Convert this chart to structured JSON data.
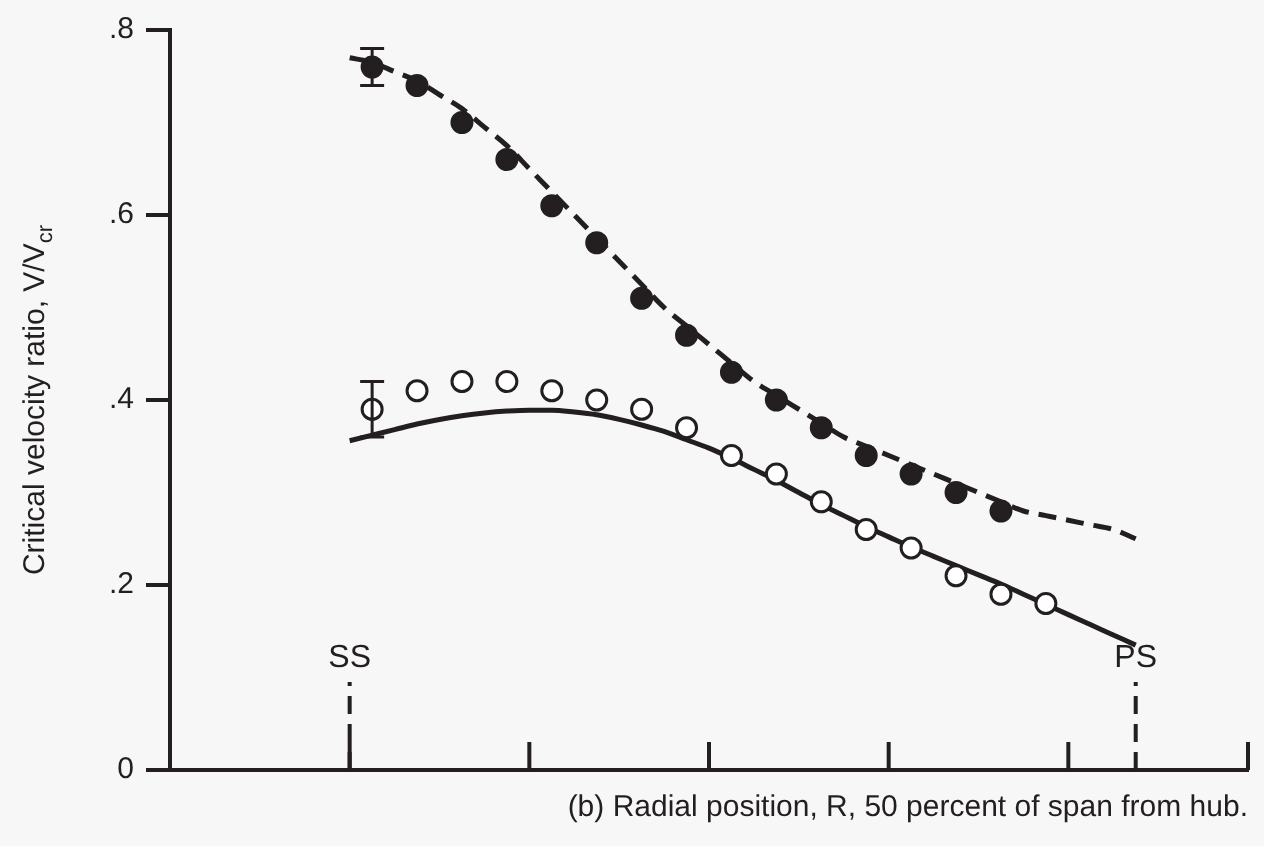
{
  "chart_data": {
    "type": "scatter",
    "xlabel": "(b) Radial position, R, 50 percent of span from hub.",
    "ylabel": "Critical velocity ratio, V/V$_{cr}$",
    "categories": [
      null,
      null,
      null,
      null,
      null,
      null,
      null,
      null,
      "SS",
      null,
      null,
      null,
      null,
      null,
      null,
      null,
      null,
      null,
      null,
      null,
      null,
      null,
      null,
      null,
      null,
      null,
      null,
      null,
      null,
      null,
      null,
      null,
      null,
      null,
      null,
      null,
      null,
      null,
      null,
      null,
      null,
      null,
      null,
      "PS",
      null,
      null,
      null,
      null,
      null
    ],
    "ylim": [
      0,
      0.8
    ],
    "yticks": [
      0,
      {
        "value": 0.2,
        "label": ".2"
      },
      {
        "value": 0.4,
        "label": ".4"
      },
      {
        "value": 0.6,
        "label": ".6"
      },
      {
        "value": 0.8,
        "label": ".8"
      }
    ],
    "grid": false,
    "legend": false,
    "marker": "circle",
    "ref_lines": [
      {
        "axis": "x",
        "value": "SS",
        "line_style": "dashed"
      },
      {
        "axis": "x",
        "value": "PS",
        "line_style": "dashed"
      }
    ],
    "series": [
      {
        "color": "#231f20",
        "values": [
          null,
          null,
          null,
          null,
          null,
          null,
          null,
          null,
          null,
          0.76,
          null,
          0.74,
          null,
          0.7,
          null,
          0.66,
          null,
          0.61,
          null,
          0.57,
          null,
          0.51,
          null,
          0.47,
          null,
          0.43,
          null,
          0.4,
          null,
          0.37,
          null,
          0.34,
          null,
          0.32,
          null,
          0.3,
          null,
          0.28,
          null,
          null,
          null,
          null,
          null,
          null,
          null,
          null,
          null,
          null,
          null
        ],
        "errors": [
          null,
          null,
          null,
          null,
          null,
          null,
          null,
          null,
          null,
          0.02,
          null,
          null,
          null,
          null,
          null,
          null,
          null,
          null,
          null,
          null,
          null,
          null,
          null,
          null,
          null,
          null,
          null,
          null,
          null,
          null,
          null,
          null,
          null,
          null,
          null,
          null,
          null,
          null,
          null,
          null,
          null,
          null,
          null,
          null,
          null,
          null,
          null,
          null,
          null
        ]
      },
      {
        "color": "#ffffff",
        "values": [
          null,
          null,
          null,
          null,
          null,
          null,
          null,
          null,
          null,
          0.39,
          null,
          0.41,
          null,
          0.42,
          null,
          0.42,
          null,
          0.41,
          null,
          0.4,
          null,
          0.39,
          null,
          0.37,
          null,
          0.34,
          null,
          0.32,
          null,
          0.29,
          null,
          0.26,
          null,
          0.24,
          null,
          0.21,
          null,
          0.19,
          null,
          0.18,
          null,
          null,
          null,
          null,
          null,
          null,
          null,
          null,
          null
        ],
        "errors": [
          null,
          null,
          null,
          null,
          null,
          null,
          null,
          null,
          null,
          0.03,
          null,
          null,
          null,
          null,
          null,
          null,
          null,
          null,
          null,
          null,
          null,
          null,
          null,
          null,
          null,
          null,
          null,
          null,
          null,
          null,
          null,
          null,
          null,
          null,
          null,
          null,
          null,
          null,
          null,
          null,
          null,
          null,
          null,
          null,
          null,
          null,
          null,
          null,
          null
        ]
      },
      {
        "type": "line",
        "color": "#231f20",
        "line_style": "dashed",
        "marker": "none",
        "values": [
          null,
          null,
          null,
          null,
          null,
          null,
          null,
          null,
          0.77,
          0.765,
          0.755,
          0.745,
          0.73,
          0.715,
          0.695,
          0.675,
          0.65,
          0.625,
          0.6,
          0.575,
          0.55,
          0.525,
          0.5,
          0.48,
          0.46,
          0.44,
          0.42,
          0.405,
          0.39,
          0.375,
          0.36,
          0.35,
          0.34,
          0.33,
          0.32,
          0.31,
          0.3,
          0.29,
          0.28,
          0.275,
          0.27,
          0.265,
          0.26,
          0.25,
          null,
          null,
          null,
          null,
          null
        ]
      },
      {
        "type": "line",
        "color": "#231f20",
        "line_style": "solid",
        "marker": "none",
        "values": [
          null,
          null,
          null,
          null,
          null,
          null,
          null,
          null,
          0.356,
          0.362,
          0.368,
          0.374,
          0.379,
          0.383,
          0.386,
          0.388,
          0.389,
          0.389,
          0.387,
          0.384,
          0.379,
          0.373,
          0.366,
          0.357,
          0.348,
          0.337,
          0.325,
          0.313,
          0.3,
          0.287,
          0.275,
          0.263,
          0.252,
          0.241,
          0.231,
          0.221,
          0.211,
          0.201,
          0.19,
          0.179,
          0.168,
          0.157,
          0.146,
          0.135,
          null,
          null,
          null,
          null,
          null
        ]
      }
    ]
  }
}
